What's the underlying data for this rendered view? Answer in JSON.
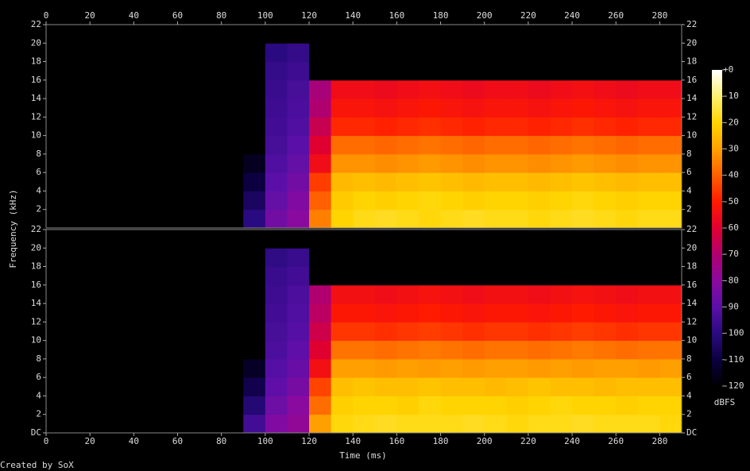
{
  "chart_data": {
    "type": "spectrogram",
    "x_label": "Time (ms)",
    "y_label": "Frequency (kHz)",
    "footer": "Created by SoX",
    "xlim": [
      0,
      290
    ],
    "xticks": [
      0,
      20,
      40,
      60,
      80,
      100,
      120,
      140,
      160,
      180,
      200,
      220,
      240,
      260,
      280
    ],
    "xbins": [
      0,
      10,
      20,
      30,
      40,
      50,
      60,
      70,
      80,
      90,
      100,
      110,
      120,
      130,
      140,
      150,
      160,
      170,
      180,
      190,
      200,
      210,
      220,
      230,
      240,
      250,
      260,
      270,
      280,
      290
    ],
    "ylim": [
      0,
      22
    ],
    "ybins": [
      0,
      2,
      4,
      6,
      8,
      10,
      12,
      14,
      16,
      18,
      20,
      22
    ],
    "series": [
      {
        "yticks": [
          2,
          4,
          6,
          8,
          10,
          12,
          14,
          16,
          18,
          20,
          22
        ],
        "values": [
          [
            -120,
            -120,
            -120,
            -120,
            -120,
            -120,
            -120,
            -120,
            -120,
            -100,
            -85,
            -80,
            -35,
            -20,
            -18,
            -17,
            -18,
            -19,
            -18,
            -17,
            -18,
            -18,
            -19,
            -18,
            -17,
            -18,
            -19,
            -18,
            -18
          ],
          [
            -120,
            -120,
            -120,
            -120,
            -120,
            -120,
            -120,
            -120,
            -120,
            -105,
            -88,
            -82,
            -40,
            -22,
            -20,
            -21,
            -20,
            -19,
            -20,
            -21,
            -20,
            -20,
            -21,
            -20,
            -19,
            -20,
            -21,
            -20,
            -20
          ],
          [
            -120,
            -120,
            -120,
            -120,
            -120,
            -120,
            -120,
            -120,
            -120,
            -110,
            -90,
            -85,
            -45,
            -25,
            -24,
            -25,
            -24,
            -23,
            -24,
            -25,
            -24,
            -24,
            -25,
            -24,
            -23,
            -24,
            -25,
            -24,
            -24
          ],
          [
            -120,
            -120,
            -120,
            -120,
            -120,
            -120,
            -120,
            -120,
            -120,
            -115,
            -92,
            -88,
            -55,
            -32,
            -32,
            -33,
            -32,
            -31,
            -32,
            -33,
            -32,
            -32,
            -33,
            -32,
            -31,
            -32,
            -33,
            -32,
            -32
          ],
          [
            -120,
            -120,
            -120,
            -120,
            -120,
            -120,
            -120,
            -120,
            -120,
            -120,
            -94,
            -90,
            -60,
            -38,
            -38,
            -39,
            -38,
            -37,
            -38,
            -39,
            -38,
            -38,
            -39,
            -38,
            -37,
            -38,
            -39,
            -38,
            -38
          ],
          [
            -120,
            -120,
            -120,
            -120,
            -120,
            -120,
            -120,
            -120,
            -120,
            -120,
            -95,
            -92,
            -65,
            -48,
            -48,
            -49,
            -48,
            -47,
            -48,
            -49,
            -48,
            -48,
            -49,
            -48,
            -47,
            -48,
            -49,
            -48,
            -48
          ],
          [
            -120,
            -120,
            -120,
            -120,
            -120,
            -120,
            -120,
            -120,
            -120,
            -120,
            -96,
            -93,
            -70,
            -52,
            -52,
            -53,
            -52,
            -51,
            -52,
            -53,
            -52,
            -52,
            -53,
            -52,
            -51,
            -52,
            -53,
            -52,
            -52
          ],
          [
            -120,
            -120,
            -120,
            -120,
            -120,
            -120,
            -120,
            -120,
            -120,
            -120,
            -97,
            -94,
            -72,
            -55,
            -55,
            -56,
            -55,
            -54,
            -55,
            -56,
            -55,
            -55,
            -56,
            -55,
            -54,
            -55,
            -56,
            -55,
            -55
          ],
          [
            -120,
            -120,
            -120,
            -120,
            -120,
            -120,
            -120,
            -120,
            -120,
            -120,
            -98,
            -96,
            -120,
            -120,
            -120,
            -120,
            -120,
            -120,
            -120,
            -120,
            -120,
            -120,
            -120,
            -120,
            -120,
            -120,
            -120,
            -120,
            -120
          ],
          [
            -120,
            -120,
            -120,
            -120,
            -120,
            -120,
            -120,
            -120,
            -120,
            -120,
            -100,
            -98,
            -120,
            -120,
            -120,
            -120,
            -120,
            -120,
            -120,
            -120,
            -120,
            -120,
            -120,
            -120,
            -120,
            -120,
            -120,
            -120,
            -120
          ],
          [
            -120,
            -120,
            -120,
            -120,
            -120,
            -120,
            -120,
            -120,
            -120,
            -120,
            -120,
            -120,
            -120,
            -120,
            -120,
            -120,
            -120,
            -120,
            -120,
            -120,
            -120,
            -120,
            -120,
            -120,
            -120,
            -120,
            -120,
            -120,
            -120
          ]
        ]
      },
      {
        "yticks": [
          {
            "value": 0,
            "label": "DC"
          },
          2,
          4,
          6,
          8,
          10,
          12,
          14,
          16,
          18,
          20,
          22
        ],
        "values": [
          [
            -120,
            -120,
            -120,
            -120,
            -120,
            -120,
            -120,
            -120,
            -120,
            -95,
            -82,
            -78,
            -30,
            -19,
            -18,
            -17,
            -18,
            -18,
            -18,
            -17,
            -18,
            -19,
            -18,
            -18,
            -17,
            -18,
            -18,
            -18,
            -19
          ],
          [
            -120,
            -120,
            -120,
            -120,
            -120,
            -120,
            -120,
            -120,
            -120,
            -102,
            -86,
            -80,
            -38,
            -21,
            -20,
            -20,
            -21,
            -19,
            -20,
            -20,
            -20,
            -21,
            -20,
            -19,
            -20,
            -20,
            -21,
            -20,
            -20
          ],
          [
            -120,
            -120,
            -120,
            -120,
            -120,
            -120,
            -120,
            -120,
            -120,
            -108,
            -89,
            -84,
            -44,
            -24,
            -23,
            -24,
            -24,
            -23,
            -24,
            -24,
            -25,
            -24,
            -23,
            -24,
            -24,
            -25,
            -24,
            -24,
            -24
          ],
          [
            -120,
            -120,
            -120,
            -120,
            -120,
            -120,
            -120,
            -120,
            -120,
            -114,
            -91,
            -87,
            -54,
            -30,
            -30,
            -31,
            -30,
            -31,
            -30,
            -31,
            -30,
            -30,
            -31,
            -30,
            -31,
            -30,
            -30,
            -31,
            -30
          ],
          [
            -120,
            -120,
            -120,
            -120,
            -120,
            -120,
            -120,
            -120,
            -120,
            -120,
            -93,
            -89,
            -60,
            -37,
            -37,
            -38,
            -37,
            -36,
            -37,
            -38,
            -37,
            -37,
            -38,
            -37,
            -36,
            -37,
            -38,
            -37,
            -37
          ],
          [
            -120,
            -120,
            -120,
            -120,
            -120,
            -120,
            -120,
            -120,
            -120,
            -120,
            -94,
            -91,
            -64,
            -46,
            -46,
            -47,
            -46,
            -45,
            -46,
            -47,
            -46,
            -46,
            -47,
            -46,
            -45,
            -46,
            -47,
            -46,
            -46
          ],
          [
            -120,
            -120,
            -120,
            -120,
            -120,
            -120,
            -120,
            -120,
            -120,
            -120,
            -95,
            -92,
            -68,
            -51,
            -51,
            -52,
            -51,
            -50,
            -51,
            -52,
            -51,
            -51,
            -52,
            -51,
            -50,
            -51,
            -52,
            -51,
            -51
          ],
          [
            -120,
            -120,
            -120,
            -120,
            -120,
            -120,
            -120,
            -120,
            -120,
            -120,
            -96,
            -93,
            -70,
            -54,
            -54,
            -55,
            -54,
            -53,
            -54,
            -55,
            -54,
            -54,
            -55,
            -54,
            -53,
            -54,
            -55,
            -54,
            -54
          ],
          [
            -120,
            -120,
            -120,
            -120,
            -120,
            -120,
            -120,
            -120,
            -120,
            -120,
            -97,
            -95,
            -120,
            -120,
            -120,
            -120,
            -120,
            -120,
            -120,
            -120,
            -120,
            -120,
            -120,
            -120,
            -120,
            -120,
            -120,
            -120,
            -120
          ],
          [
            -120,
            -120,
            -120,
            -120,
            -120,
            -120,
            -120,
            -120,
            -120,
            -120,
            -99,
            -97,
            -120,
            -120,
            -120,
            -120,
            -120,
            -120,
            -120,
            -120,
            -120,
            -120,
            -120,
            -120,
            -120,
            -120,
            -120,
            -120,
            -120
          ],
          [
            -120,
            -120,
            -120,
            -120,
            -120,
            -120,
            -120,
            -120,
            -120,
            -120,
            -120,
            -120,
            -120,
            -120,
            -120,
            -120,
            -120,
            -120,
            -120,
            -120,
            -120,
            -120,
            -120,
            -120,
            -120,
            -120,
            -120,
            -120,
            -120
          ]
        ]
      }
    ],
    "colorbar": {
      "label": "dBFS",
      "lim": [
        -120,
        0
      ],
      "ticks": [
        -120,
        -110,
        -100,
        -90,
        -80,
        -70,
        -60,
        -50,
        -40,
        -30,
        -20,
        -10,
        {
          "value": 0,
          "label": "+0"
        }
      ],
      "colors": [
        "#000000",
        "#0c0040",
        "#2a0a80",
        "#5a10a8",
        "#8a0aa0",
        "#b00070",
        "#e00030",
        "#ff1a00",
        "#ff6000",
        "#ffa000",
        "#ffd400",
        "#fff070",
        "#ffffff"
      ]
    }
  }
}
